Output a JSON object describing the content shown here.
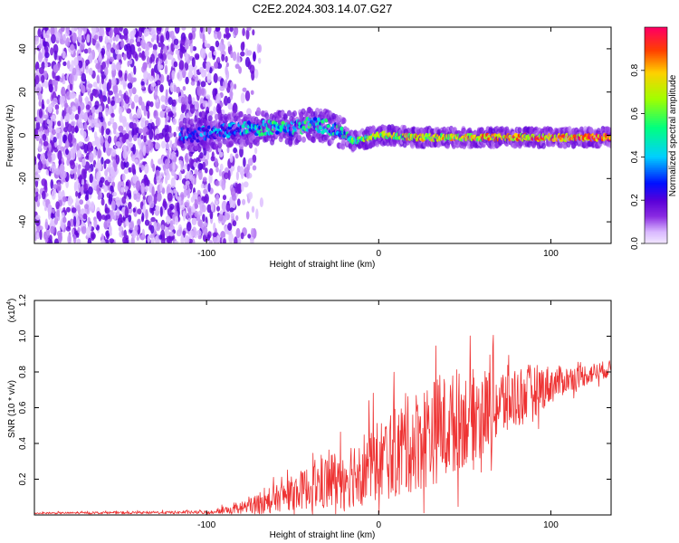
{
  "title": "C2E2.2024.303.14.07.G27",
  "chart_data": [
    {
      "type": "heatmap",
      "xlabel": "Height of straight line (km)",
      "ylabel": "Frequency (Hz)",
      "xlim": [
        -200,
        135
      ],
      "ylim": [
        -50,
        50
      ],
      "xticks": [
        -100,
        0,
        100
      ],
      "xtick_labels": [
        "-100",
        "0",
        "100"
      ],
      "yticks": [
        -40,
        -20,
        0,
        20,
        40
      ],
      "ytick_labels": [
        "-40",
        "-20",
        "0",
        "20",
        "40"
      ],
      "colorbar": {
        "label": "Normalized spectral amplitude",
        "range": [
          0,
          1
        ],
        "ticks": [
          0,
          0.2,
          0.4,
          0.6,
          0.8
        ],
        "tick_labels": [
          "0.0",
          "0.2",
          "0.4",
          "0.6",
          "0.8"
        ]
      },
      "ridge": {
        "x": [
          -110,
          -100,
          -90,
          -80,
          -70,
          -60,
          -50,
          -40,
          -30,
          -20,
          -15,
          -10,
          0,
          10,
          20,
          40,
          60,
          80,
          100,
          120,
          135
        ],
        "freq": [
          0,
          1,
          2,
          3,
          3,
          4,
          3,
          5,
          4,
          1,
          -3,
          -2,
          0,
          0,
          -1,
          -1,
          -1,
          -1,
          -1,
          -1,
          -1
        ],
        "amplitude": [
          0.25,
          0.3,
          0.35,
          0.35,
          0.4,
          0.45,
          0.4,
          0.45,
          0.4,
          0.45,
          0.55,
          0.6,
          0.65,
          0.7,
          0.7,
          0.7,
          0.75,
          0.8,
          0.8,
          0.85,
          0.9
        ]
      }
    },
    {
      "type": "line",
      "xlabel": "Height of straight line (km)",
      "ylabel": "SNR (10 * v/v)",
      "multiplier_label": "(x10",
      "multiplier_exp": "4",
      "xlim": [
        -200,
        135
      ],
      "ylim": [
        0,
        1.2
      ],
      "xticks": [
        -100,
        0,
        100
      ],
      "xtick_labels": [
        "-100",
        "0",
        "100"
      ],
      "yticks": [
        0.2,
        0.4,
        0.6,
        0.8,
        1.0,
        1.2
      ],
      "ytick_labels": [
        "0.2",
        "0.4",
        "0.6",
        "0.8",
        "1.0",
        "1.2"
      ],
      "color": "#ee3333",
      "envelope": {
        "x": [
          -200,
          -100,
          -85,
          -75,
          -60,
          -45,
          -30,
          -15,
          0,
          15,
          30,
          50,
          70,
          90,
          110,
          135
        ],
        "base": [
          0.01,
          0.015,
          0.03,
          0.05,
          0.09,
          0.14,
          0.18,
          0.24,
          0.3,
          0.38,
          0.46,
          0.54,
          0.62,
          0.7,
          0.76,
          0.82
        ],
        "spread": [
          0.005,
          0.01,
          0.04,
          0.06,
          0.08,
          0.12,
          0.18,
          0.22,
          0.26,
          0.3,
          0.34,
          0.3,
          0.24,
          0.16,
          0.08,
          0.05
        ]
      }
    }
  ]
}
